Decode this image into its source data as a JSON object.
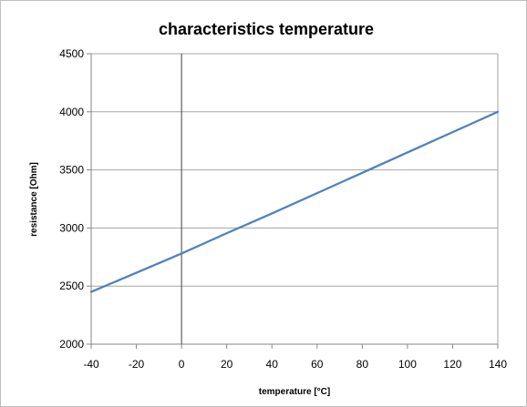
{
  "chart_data": {
    "type": "line",
    "title": "characteristics temperature",
    "xlabel": "temperature [°C]",
    "ylabel": "resistance [Ohm]",
    "xlim": [
      -40,
      140
    ],
    "ylim": [
      2000,
      4500
    ],
    "x_ticks": [
      -40,
      -20,
      0,
      20,
      40,
      60,
      80,
      100,
      120,
      140
    ],
    "y_ticks": [
      2000,
      2500,
      3000,
      3500,
      4000,
      4500
    ],
    "x_tick_labels": [
      "-40",
      "-20",
      "0",
      "20",
      "40",
      "60",
      "80",
      "100",
      "120",
      "140"
    ],
    "y_tick_labels": [
      "2000",
      "2500",
      "3000",
      "3500",
      "4000",
      "4500"
    ],
    "grid": "horizontal",
    "legend": "none",
    "series": [
      {
        "color": "#4f81bd",
        "x": [
          -40,
          -20,
          0,
          20,
          40,
          60,
          80,
          100,
          120,
          140
        ],
        "y": [
          2450,
          2615,
          2780,
          2955,
          3125,
          3300,
          3475,
          3650,
          3825,
          4000
        ]
      }
    ]
  },
  "colors": {
    "grid": "#a6a6a6",
    "axis": "#868686",
    "zero_line": "#404040"
  }
}
